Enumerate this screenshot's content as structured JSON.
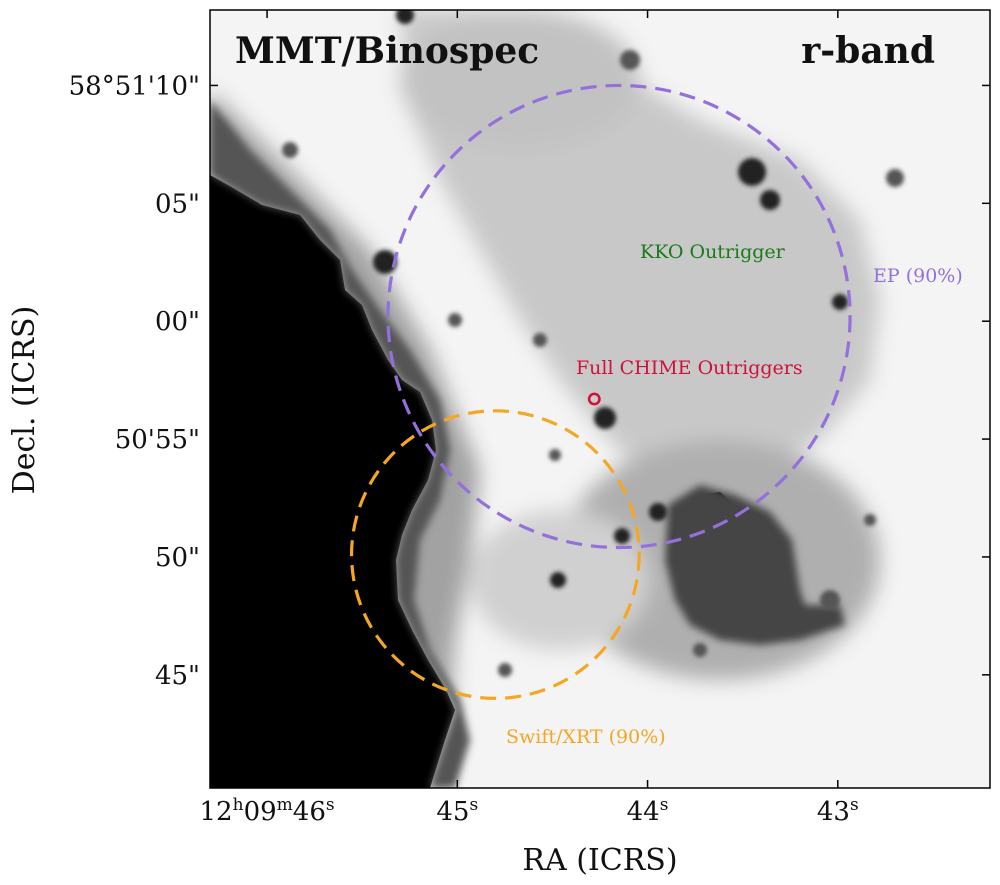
{
  "chart_data": {
    "type": "image",
    "title_left": "MMT/Binospec",
    "title_right": "r-band",
    "xlabel": "RA (ICRS)",
    "ylabel": "Decl. (ICRS)",
    "xlim_sec": [
      46.3,
      42.2
    ],
    "ylim_arcsec": [
      40.2,
      13.2
    ],
    "x_ticks": [
      {
        "sec": 46,
        "label": "12",
        "h": "h",
        "m_val": "09",
        "m": "m",
        "s_val": "46",
        "s": "s",
        "full": true
      },
      {
        "sec": 45,
        "label": "45",
        "s": "s",
        "full": false
      },
      {
        "sec": 44,
        "label": "44",
        "s": "s",
        "full": false
      },
      {
        "sec": 43,
        "label": "43",
        "s": "s",
        "full": false
      }
    ],
    "y_ticks": [
      {
        "arcsec": 10,
        "label": "58°51'10\""
      },
      {
        "arcsec": 5,
        "label": "05\""
      },
      {
        "arcsec": 0,
        "label": "00\""
      },
      {
        "arcsec": -5,
        "label": "50'55\""
      },
      {
        "arcsec": -10,
        "label": "50\""
      },
      {
        "arcsec": -15,
        "label": "45\""
      }
    ],
    "regions": [
      {
        "name": "EP (90%)",
        "shape": "circle",
        "center_ra_sec": 44.15,
        "center_dec_arcsec": 0.2,
        "radius_arcsec": 9.8,
        "color": "#9370DB",
        "style": "dashed"
      },
      {
        "name": "Swift/XRT (90%)",
        "shape": "circle",
        "center_ra_sec": 44.8,
        "center_dec_arcsec": -9.9,
        "radius_arcsec": 6.1,
        "color": "#F5A623",
        "style": "dashed"
      },
      {
        "name": "KKO Outrigger",
        "shape": "band",
        "color": "#1a7a1a",
        "line1": [
          [
            44.98,
            13.2
          ],
          [
            44.13,
            40.2
          ]
        ],
        "line2": [
          [
            44.63,
            13.2
          ],
          [
            43.82,
            40.2
          ]
        ]
      },
      {
        "name": "Full CHIME Outriggers",
        "shape": "small-circle",
        "center_ra_sec": 44.28,
        "center_dec_arcsec": -3.3,
        "radius_arcsec": 0.22,
        "color": "#d0103a"
      }
    ],
    "annotations": {
      "kko": "KKO Outrigger",
      "ep": "EP (90%)",
      "chime": "Full CHIME Outriggers",
      "xrt": "Swift/XRT (90%)"
    },
    "colors": {
      "ep": "#9370DB",
      "xrt": "#F5A623",
      "kko": "#1a7a1a",
      "chime": "#d0103a"
    }
  }
}
